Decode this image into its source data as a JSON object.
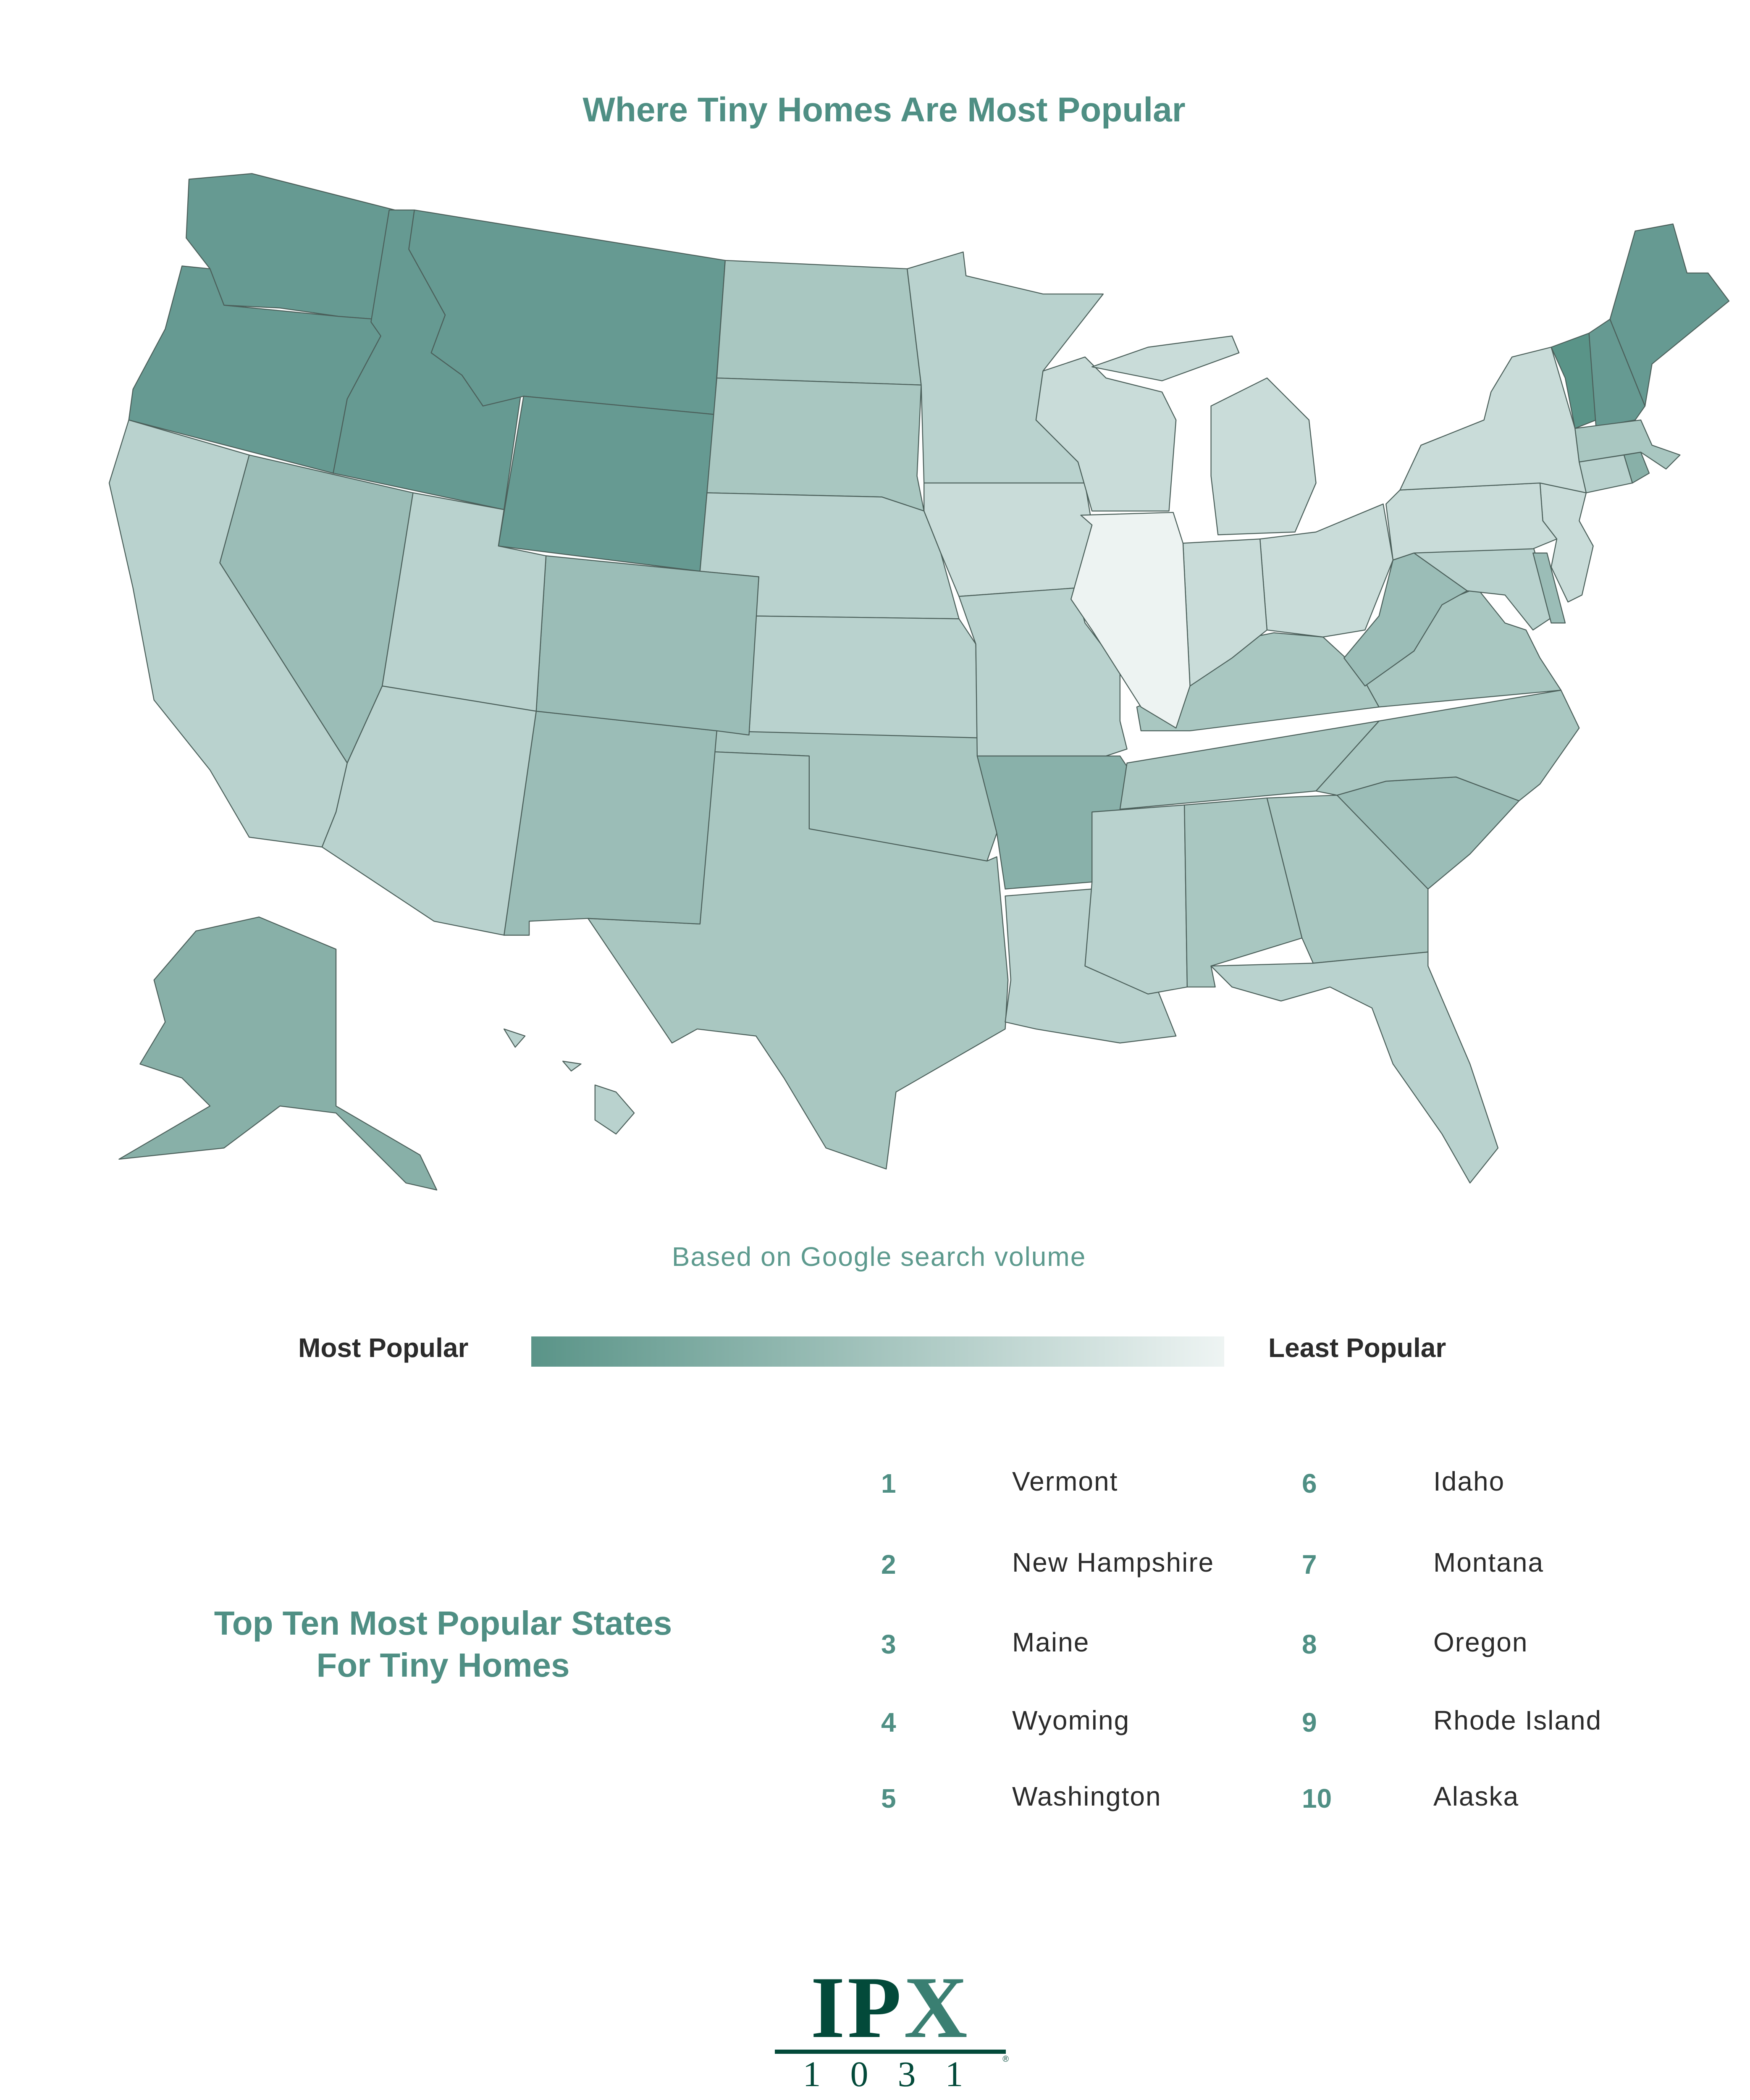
{
  "title": "Where Tiny Homes Are Most Popular",
  "subtitle": "Based on Google search volume",
  "legend": {
    "most_label": "Most Popular",
    "least_label": "Least Popular",
    "gradient_from": "#5a9488",
    "gradient_to": "#eef4f3"
  },
  "map": {
    "stroke": "#4b5f5a",
    "levels": {
      "vt": "#5a9488",
      "dark": "#669a92",
      "alaska": "#88b0a8",
      "arkansas": "#89b1aa",
      "midhigh": "#9bbdb7",
      "mid": "#a9c7c1",
      "light": "#b9d2ce",
      "lighter": "#c9dcd9",
      "lightest": "#edf3f2"
    },
    "state_level": {
      "VT": "vt",
      "NH": "dark",
      "ME": "dark",
      "WY": "dark",
      "WA": "dark",
      "ID": "dark",
      "MT": "dark",
      "OR": "dark",
      "RI": "alaska",
      "AK": "alaska",
      "AR": "arkansas",
      "NV": "midhigh",
      "CO": "midhigh",
      "NM": "midhigh",
      "WV": "midhigh",
      "SC": "midhigh",
      "DE": "midhigh",
      "TX": "mid",
      "OK": "mid",
      "ND": "mid",
      "SD": "mid",
      "GA": "mid",
      "AL": "mid",
      "NC": "mid",
      "TN": "mid",
      "VA": "mid",
      "KY": "mid",
      "MA": "mid",
      "CA": "light",
      "AZ": "light",
      "NE": "light",
      "KS": "light",
      "MO": "light",
      "LA": "light",
      "MS": "light",
      "FL": "light",
      "MN": "light",
      "UT": "light",
      "CT": "light",
      "MD": "light",
      "HI": "light",
      "IA": "lighter",
      "WI": "lighter",
      "MI": "lighter",
      "IN": "lighter",
      "OH": "lighter",
      "NY": "lighter",
      "PA": "lighter",
      "NJ": "lighter",
      "IL": "lightest"
    }
  },
  "top_ten": {
    "heading_line1": "Top Ten Most Popular States",
    "heading_line2": "For Tiny Homes",
    "items": [
      {
        "rank": "1",
        "state": "Vermont"
      },
      {
        "rank": "2",
        "state": "New Hampshire"
      },
      {
        "rank": "3",
        "state": "Maine"
      },
      {
        "rank": "4",
        "state": "Wyoming"
      },
      {
        "rank": "5",
        "state": "Washington"
      },
      {
        "rank": "6",
        "state": "Idaho"
      },
      {
        "rank": "7",
        "state": "Montana"
      },
      {
        "rank": "8",
        "state": "Oregon"
      },
      {
        "rank": "9",
        "state": "Rhode Island"
      },
      {
        "rank": "10",
        "state": "Alaska"
      }
    ]
  },
  "logo": {
    "letters_main": "IP",
    "letter_x": "X",
    "number": "1031",
    "registered": "®"
  }
}
